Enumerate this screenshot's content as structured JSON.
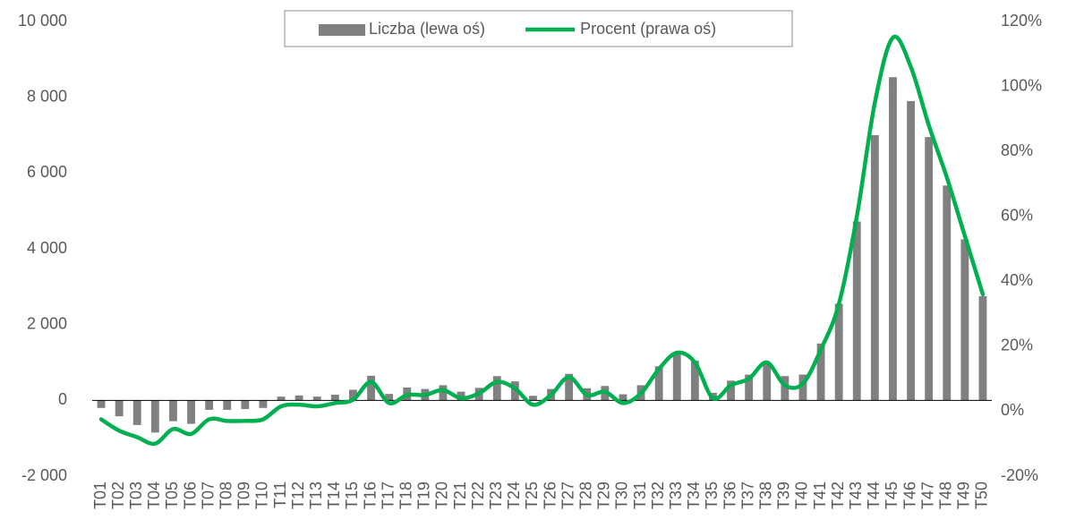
{
  "chart_data": {
    "type": "bar-line",
    "categories": [
      "T01",
      "T02",
      "T03",
      "T04",
      "T05",
      "T06",
      "T07",
      "T08",
      "T09",
      "T10",
      "T11",
      "T12",
      "T13",
      "T14",
      "T15",
      "T16",
      "T17",
      "T18",
      "T19",
      "T20",
      "T21",
      "T22",
      "T23",
      "T24",
      "T25",
      "T26",
      "T27",
      "T28",
      "T29",
      "T30",
      "T31",
      "T32",
      "T33",
      "T34",
      "T35",
      "T36",
      "T37",
      "T38",
      "T39",
      "T40",
      "T41",
      "T42",
      "T43",
      "T44",
      "T45",
      "T46",
      "T47",
      "T48",
      "T49",
      "T50"
    ],
    "series": [
      {
        "name": "Liczba (lewa oś)",
        "type": "bar",
        "color": "#808080",
        "values": [
          -200,
          -420,
          -650,
          -850,
          -550,
          -620,
          -250,
          -250,
          -230,
          -200,
          100,
          130,
          100,
          150,
          280,
          650,
          170,
          340,
          300,
          400,
          230,
          330,
          640,
          500,
          120,
          300,
          700,
          320,
          380,
          160,
          400,
          900,
          1250,
          1050,
          200,
          520,
          680,
          980,
          640,
          680,
          1500,
          2550,
          4720,
          7000,
          8530,
          7900,
          6950,
          5670,
          4250,
          2750
        ]
      },
      {
        "name": "Procent (prawa oś)",
        "type": "line",
        "axis": "y2",
        "color": "#00b050",
        "values": [
          -2.5,
          -6,
          -8,
          -10,
          -5.5,
          -7,
          -2.5,
          -3,
          -3,
          -2.5,
          1.5,
          2,
          1.5,
          2.5,
          3.5,
          9,
          2.5,
          5,
          5,
          6.5,
          4,
          5.5,
          9,
          7,
          2,
          5,
          10.5,
          5,
          6,
          2.5,
          5.5,
          13,
          18,
          15,
          4,
          8,
          10,
          15,
          8,
          8.5,
          19,
          33,
          60,
          95,
          115,
          106,
          88,
          72,
          54,
          36
        ]
      }
    ],
    "ylim": [
      -2000,
      10000
    ],
    "yticks": [
      {
        "value": -2000,
        "label": "-2 000"
      },
      0,
      {
        "value": 2000,
        "label": "2 000"
      },
      {
        "value": 4000,
        "label": "4 000"
      },
      {
        "value": 6000,
        "label": "6 000"
      },
      {
        "value": 8000,
        "label": "8 000"
      },
      {
        "value": 10000,
        "label": "10 000"
      }
    ],
    "y2lim": [
      -20,
      120
    ],
    "y2ticks": [
      {
        "value": -20,
        "label": "-20%"
      },
      {
        "value": 0,
        "label": "0%"
      },
      {
        "value": 20,
        "label": "20%"
      },
      {
        "value": 40,
        "label": "40%"
      },
      {
        "value": 60,
        "label": "60%"
      },
      {
        "value": 80,
        "label": "80%"
      },
      {
        "value": 100,
        "label": "100%"
      },
      {
        "value": 120,
        "label": "120%"
      }
    ],
    "legend": "top"
  }
}
